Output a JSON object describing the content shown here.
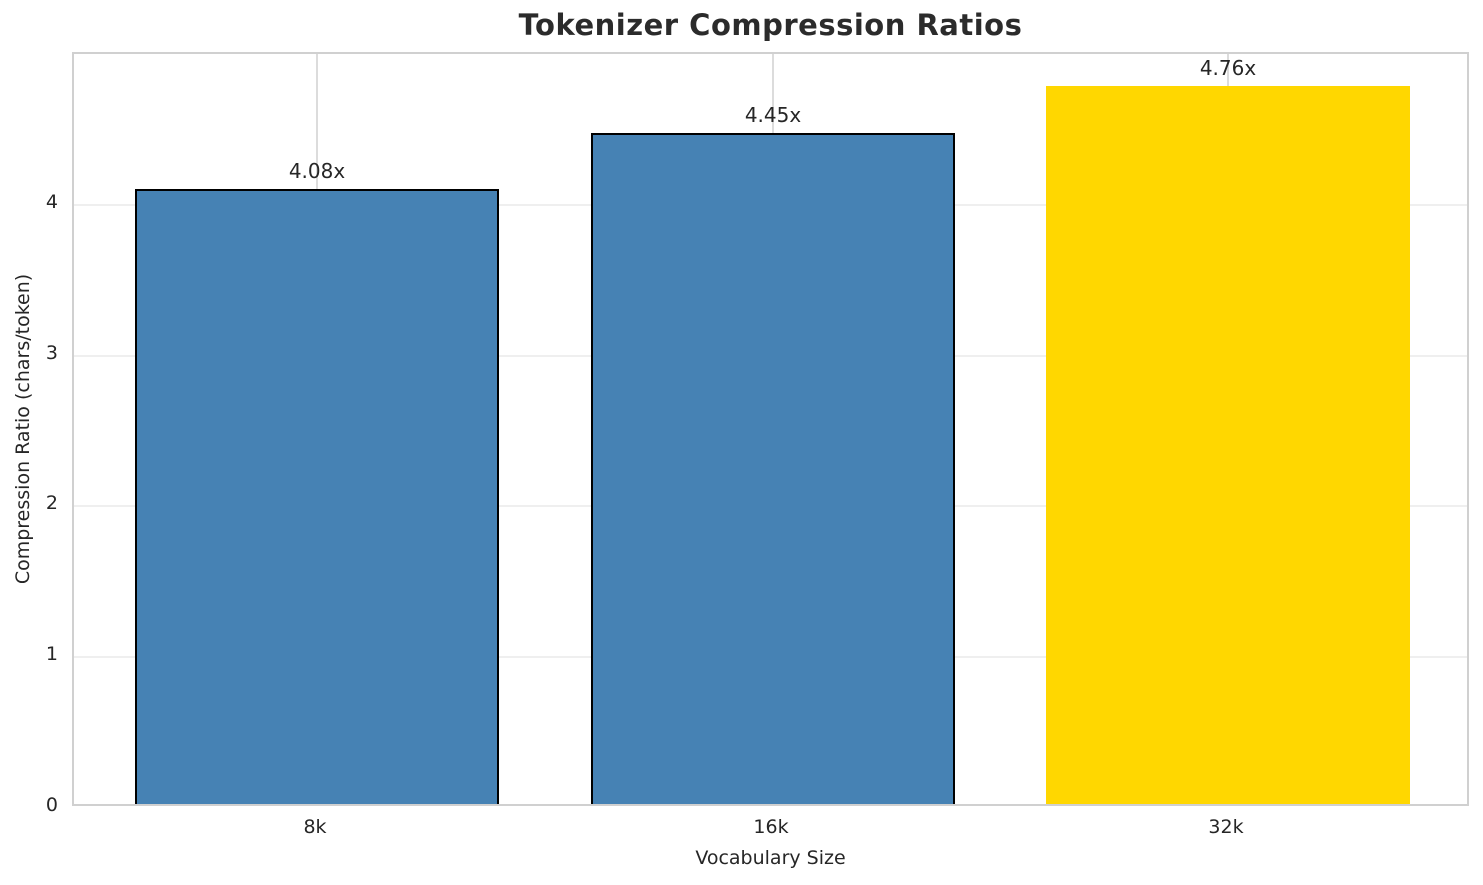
{
  "title": "Tokenizer Compression Ratios",
  "x_axis_label": "Vocabulary Size",
  "y_axis_label": "Compression Ratio (chars/token)",
  "colors": {
    "steel_blue": "#4682b4",
    "gold": "#ffd700",
    "bar_edge": "#000000",
    "grid_horizontal": "#efefef",
    "grid_vertical": "#dcdcdc",
    "spine": "#d0d0d0",
    "text": "#262626"
  },
  "chart_data": {
    "type": "bar",
    "title": "Tokenizer Compression Ratios",
    "xlabel": "Vocabulary Size",
    "ylabel": "Compression Ratio (chars/token)",
    "categories": [
      "8k",
      "16k",
      "32k"
    ],
    "values": [
      4.08,
      4.45,
      4.76
    ],
    "value_labels": [
      "4.08x",
      "4.45x",
      "4.76x"
    ],
    "bar_colors": [
      "#4682b4",
      "#4682b4",
      "#ffd700"
    ],
    "bar_edge_colors": [
      "#000000",
      "#000000",
      "#ffd700"
    ],
    "yticks": [
      0,
      1,
      2,
      3,
      4
    ],
    "ytick_labels": [
      "0",
      "1",
      "2",
      "3",
      "4"
    ],
    "ylim": [
      0,
      5
    ],
    "xlim": [
      -0.535,
      2.535
    ],
    "bar_width_units": 0.8,
    "grid": true,
    "legend": false
  }
}
